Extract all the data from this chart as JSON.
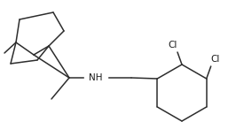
{
  "bg_color": "#ffffff",
  "bond_color": "#2d2d2d",
  "text_color": "#1a1a1a",
  "nh_label": "NH",
  "cl1_label": "Cl",
  "cl2_label": "Cl",
  "figsize": [
    2.66,
    1.55
  ],
  "dpi": 100
}
